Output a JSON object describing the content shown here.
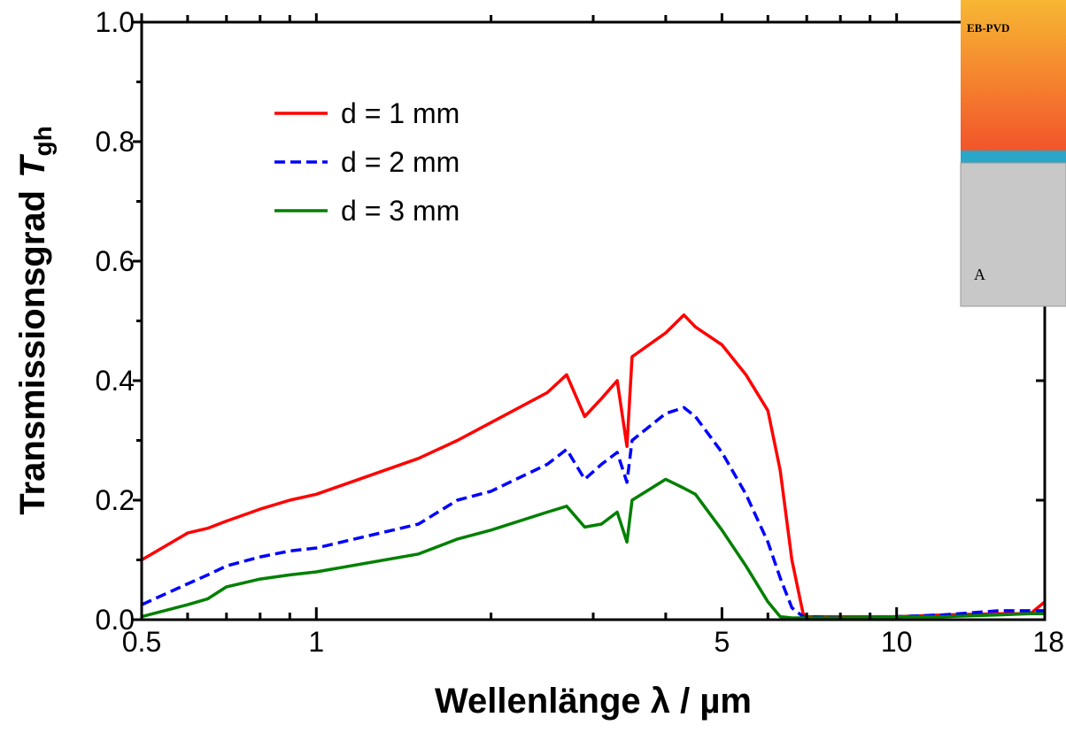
{
  "chart_data": {
    "type": "line",
    "ylabel": "Transmissionsgrad",
    "ysymbol": "T",
    "ysubscript": "gh",
    "xlabel": "Wellenlänge  λ  /  µm",
    "xscale": "log",
    "xlim": [
      0.5,
      18
    ],
    "ylim": [
      0,
      1
    ],
    "xticks": [
      0.5,
      1,
      5,
      10,
      18
    ],
    "xminorticks": [
      0.6,
      0.7,
      0.8,
      0.9,
      2,
      3,
      4,
      6,
      7,
      8,
      9
    ],
    "yticks": [
      {
        "value": 0,
        "label": "0.0"
      },
      0.2,
      0.4,
      0.6,
      0.8,
      {
        "value": 1,
        "label": "1.0"
      }
    ],
    "yminorticks": [
      0.1,
      0.3,
      0.5,
      0.7,
      0.9
    ],
    "legend": "upper left",
    "x": [
      0.5,
      0.6,
      0.65,
      0.7,
      0.8,
      0.9,
      1,
      1.5,
      1.75,
      2,
      2.5,
      2.7,
      2.9,
      3.1,
      3.3,
      3.43,
      3.5,
      4,
      4.3,
      4.5,
      5,
      5.5,
      6,
      6.3,
      6.6,
      6.9,
      7,
      8,
      10,
      12,
      15,
      17,
      18
    ],
    "series": [
      {
        "name": "d = 1 mm",
        "color": "#ff0000",
        "dash": false,
        "values": [
          0.1,
          0.145,
          0.153,
          0.165,
          0.185,
          0.2,
          0.21,
          0.27,
          0.3,
          0.33,
          0.38,
          0.41,
          0.34,
          0.37,
          0.4,
          0.29,
          0.44,
          0.48,
          0.51,
          0.49,
          0.46,
          0.41,
          0.35,
          0.25,
          0.1,
          0.01,
          0.005,
          0.005,
          0.005,
          0.008,
          0.01,
          0.01,
          0.03
        ]
      },
      {
        "name": "d = 2 mm",
        "color": "#0000ff",
        "dash": true,
        "values": [
          0.025,
          0.06,
          0.075,
          0.09,
          0.105,
          0.115,
          0.12,
          0.16,
          0.2,
          0.215,
          0.26,
          0.285,
          0.235,
          0.26,
          0.28,
          0.23,
          0.3,
          0.345,
          0.355,
          0.34,
          0.28,
          0.21,
          0.13,
          0.07,
          0.02,
          0.005,
          0.005,
          0.003,
          0.005,
          0.008,
          0.015,
          0.015,
          0.015
        ]
      },
      {
        "name": "d = 3 mm",
        "color": "#008000",
        "dash": false,
        "values": [
          0.005,
          0.025,
          0.035,
          0.055,
          0.068,
          0.075,
          0.08,
          0.11,
          0.135,
          0.15,
          0.18,
          0.19,
          0.155,
          0.16,
          0.18,
          0.13,
          0.2,
          0.235,
          0.22,
          0.21,
          0.15,
          0.09,
          0.03,
          0.005,
          0.003,
          0.003,
          0.003,
          0.003,
          0.005,
          0.005,
          0.008,
          0.01,
          0.01
        ]
      }
    ]
  },
  "inset": {
    "texts": [
      "EB-PVD",
      "A"
    ]
  }
}
